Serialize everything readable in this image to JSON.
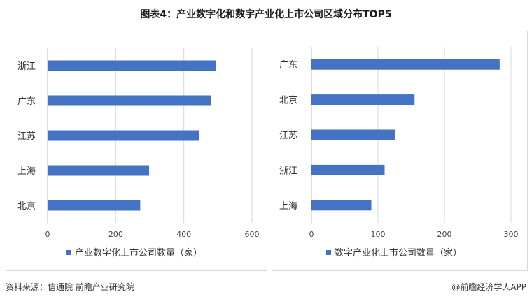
{
  "page": {
    "title": "图表4：产业数字化和数字产业化上市公司区域分布TOP5",
    "source": "资料来源：信通院 前瞻产业研究院",
    "credit": "@前瞻经济学人APP"
  },
  "colors": {
    "bar": "#4472C4",
    "grid": "#d9d9d9",
    "axis": "#bfbfbf"
  },
  "chart_data": [
    {
      "type": "bar",
      "orientation": "horizontal",
      "categories": [
        "浙江",
        "广东",
        "江苏",
        "上海",
        "北京"
      ],
      "series": [
        {
          "name": "产业数字化上市公司数量（家）",
          "values": [
            495,
            480,
            445,
            298,
            272
          ]
        }
      ],
      "xlim": [
        0,
        600
      ],
      "xticks": [
        0,
        200,
        400,
        600
      ],
      "grid": true,
      "legend_position": "bottom"
    },
    {
      "type": "bar",
      "orientation": "horizontal",
      "categories": [
        "广东",
        "北京",
        "江苏",
        "浙江",
        "上海"
      ],
      "series": [
        {
          "name": "数字产业化上市公司数量（家）",
          "values": [
            283,
            155,
            126,
            110,
            90
          ]
        }
      ],
      "xlim": [
        0,
        300
      ],
      "xticks": [
        0,
        100,
        200,
        300
      ],
      "grid": true,
      "legend_position": "bottom"
    }
  ]
}
